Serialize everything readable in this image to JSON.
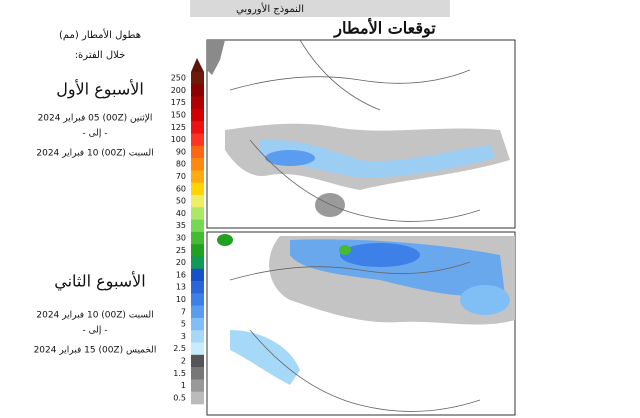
{
  "header": {
    "model": "النموذج الأوروبي",
    "title": "توقعات الأمطار"
  },
  "legend": {
    "title": "هطول الأمطار (مم)",
    "subtitle": "خلال الفترة:",
    "levels": [
      {
        "label": "250",
        "color": "#6e1a0a"
      },
      {
        "label": "200",
        "color": "#8b0000"
      },
      {
        "label": "175",
        "color": "#b00000"
      },
      {
        "label": "150",
        "color": "#d40000"
      },
      {
        "label": "125",
        "color": "#ee1111"
      },
      {
        "label": "100",
        "color": "#ff3322"
      },
      {
        "label": "90",
        "color": "#ff6611"
      },
      {
        "label": "80",
        "color": "#ff8811"
      },
      {
        "label": "70",
        "color": "#ffaa11"
      },
      {
        "label": "60",
        "color": "#ffd400"
      },
      {
        "label": "50",
        "color": "#eeee66"
      },
      {
        "label": "40",
        "color": "#aae866"
      },
      {
        "label": "35",
        "color": "#77d855"
      },
      {
        "label": "30",
        "color": "#44bb33"
      },
      {
        "label": "25",
        "color": "#22a022"
      },
      {
        "label": "20",
        "color": "#119955"
      },
      {
        "label": "16",
        "color": "#1750c8"
      },
      {
        "label": "13",
        "color": "#2a66d8"
      },
      {
        "label": "10",
        "color": "#3c80e8"
      },
      {
        "label": "7",
        "color": "#5a9cf0"
      },
      {
        "label": "5",
        "color": "#80bff5"
      },
      {
        "label": "3",
        "color": "#a6d8f8"
      },
      {
        "label": "2.5",
        "color": "#c8ecfb"
      },
      {
        "label": "2",
        "color": "#555555"
      },
      {
        "label": "1.5",
        "color": "#777777"
      },
      {
        "label": "1",
        "color": "#999999"
      },
      {
        "label": "0.5",
        "color": "#bbbbbb"
      }
    ]
  },
  "periods": [
    {
      "name": "الأسبوع الأول",
      "start": "الإثنين (00Z) 05 فبراير 2024",
      "separator": "- إلى -",
      "end": "السبت (00Z) 10 فبراير 2024"
    },
    {
      "name": "الأسبوع الثاني",
      "start": "السبت (00Z) 10 فبراير 2024",
      "separator": "- إلى -",
      "end": "الخميس (00Z) 15 فبراير 2024"
    }
  ]
}
